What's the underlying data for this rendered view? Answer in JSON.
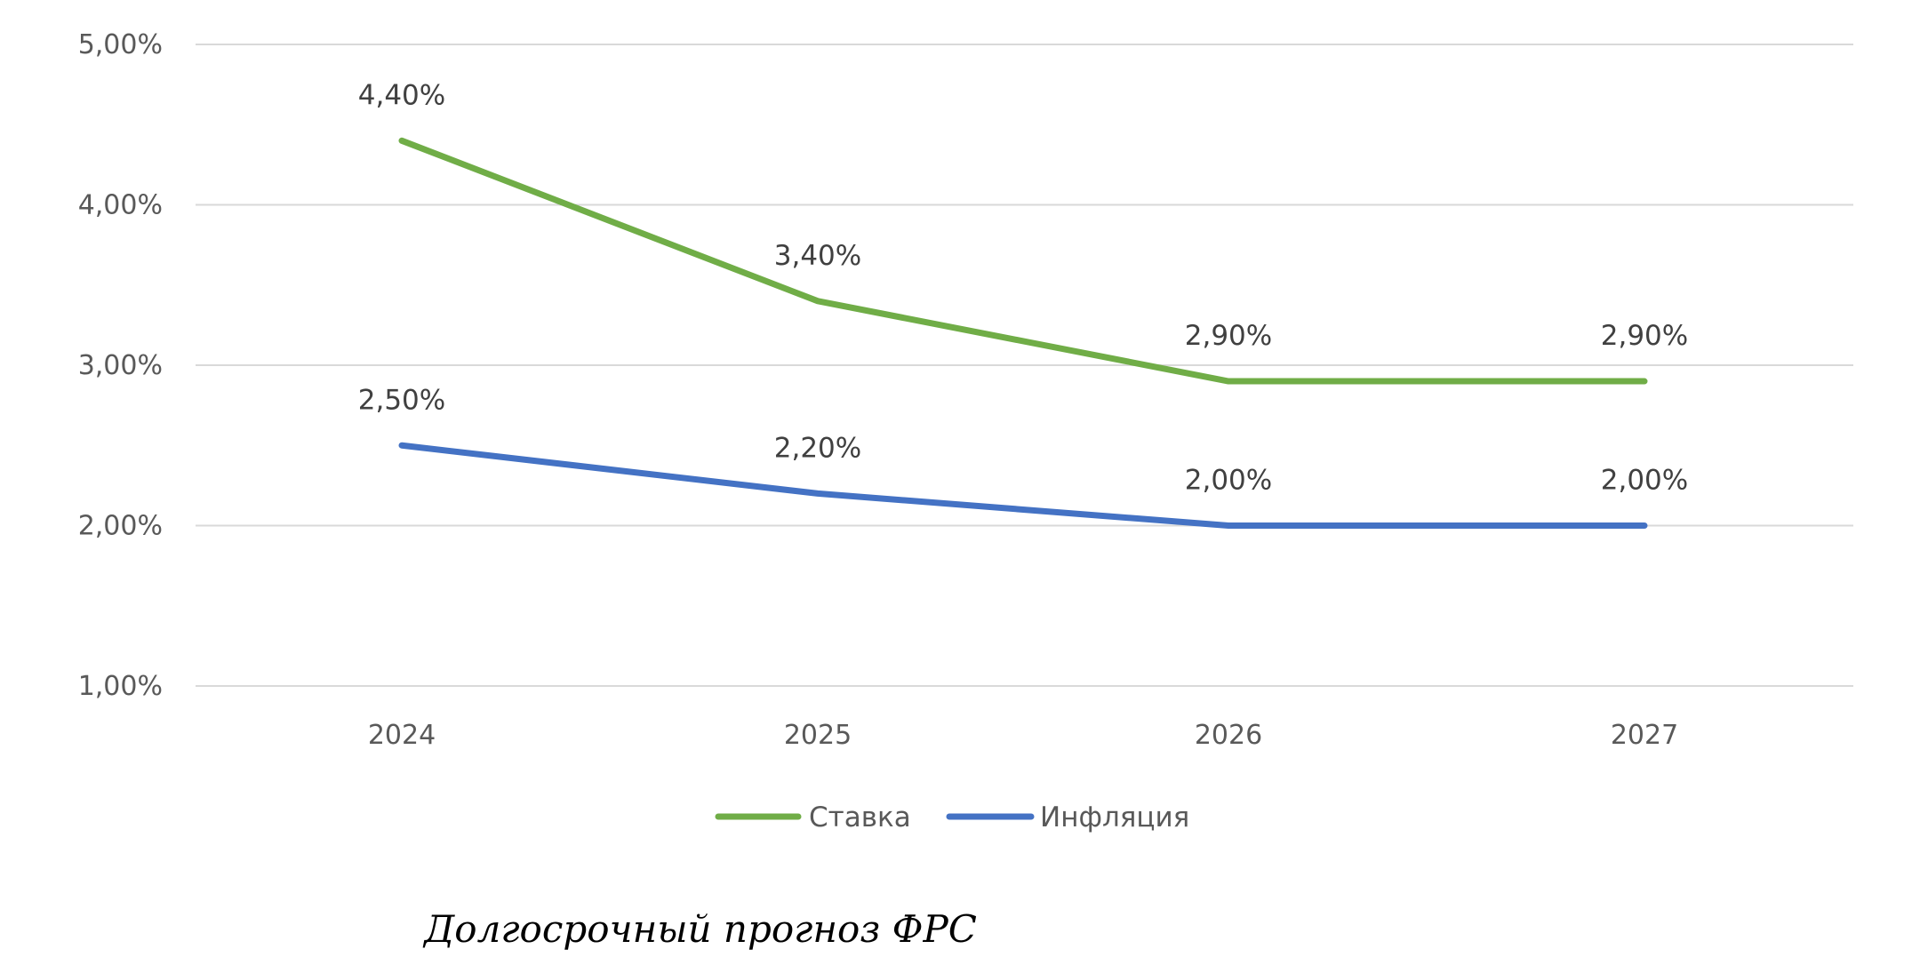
{
  "chart_data": {
    "type": "line",
    "title": "",
    "caption": "Долгосрочный прогноз ФРС",
    "xlabel": "",
    "ylabel": "",
    "categories": [
      "2024",
      "2025",
      "2026",
      "2027"
    ],
    "ylim": [
      1.0,
      5.0
    ],
    "yticks": [
      1.0,
      2.0,
      3.0,
      4.0,
      5.0
    ],
    "ytick_labels": [
      "1,00%",
      "2,00%",
      "3,00%",
      "4,00%",
      "5,00%"
    ],
    "grid": true,
    "legend_position": "bottom",
    "series": [
      {
        "name": "Ставка",
        "values": [
          4.4,
          3.4,
          2.9,
          2.9
        ],
        "labels": [
          "4,40%",
          "3,40%",
          "2,90%",
          "2,90%"
        ],
        "color": "#70AD47"
      },
      {
        "name": "Инфляция",
        "values": [
          2.5,
          2.2,
          2.0,
          2.0
        ],
        "labels": [
          "2,50%",
          "2,20%",
          "2,00%",
          "2,00%"
        ],
        "color": "#4472C4"
      }
    ]
  },
  "colors": {
    "grid": "#d9d9d9",
    "axis_text": "#595959",
    "label_text": "#404040"
  }
}
